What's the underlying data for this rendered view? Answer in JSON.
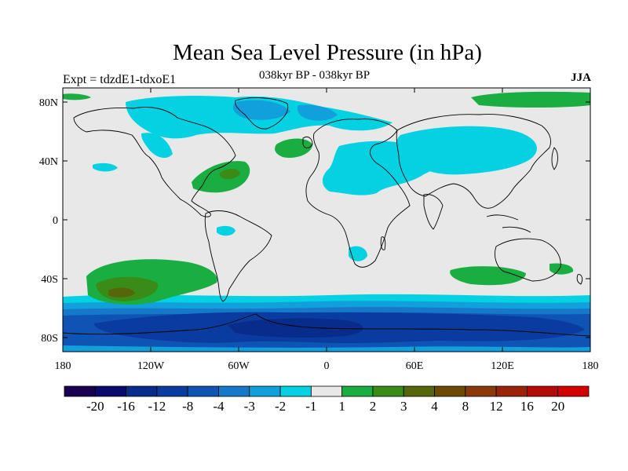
{
  "title": "Mean Sea Level Pressure (in hPa)",
  "subtitle": "038kyr BP - 038kyr BP",
  "left_note": "Expt = tdzdE1-tdxoE1",
  "right_note": "JJA",
  "axes": {
    "x_ticks": [
      "180",
      "120W",
      "60W",
      "0",
      "60E",
      "120E",
      "180"
    ],
    "y_ticks": [
      "80N",
      "40N",
      "0",
      "40S",
      "80S"
    ]
  },
  "colorbar": {
    "colors": [
      "#1a0050",
      "#0a0a6e",
      "#082c8c",
      "#0a3ca0",
      "#0f54b4",
      "#1678c8",
      "#11a0dc",
      "#04d2e2",
      "#e8e8e8",
      "#1aae42",
      "#3a8c18",
      "#56660a",
      "#6a4a04",
      "#8a3a0a",
      "#9a2208",
      "#b40a0a",
      "#d20000"
    ],
    "labels": [
      "-20",
      "-16",
      "-12",
      "-8",
      "-4",
      "-3",
      "-2",
      "-1",
      "1",
      "2",
      "3",
      "4",
      "8",
      "12",
      "16",
      "20"
    ]
  },
  "map_colors": {
    "ocean": "#e8e8e8",
    "coast": "#000000"
  }
}
